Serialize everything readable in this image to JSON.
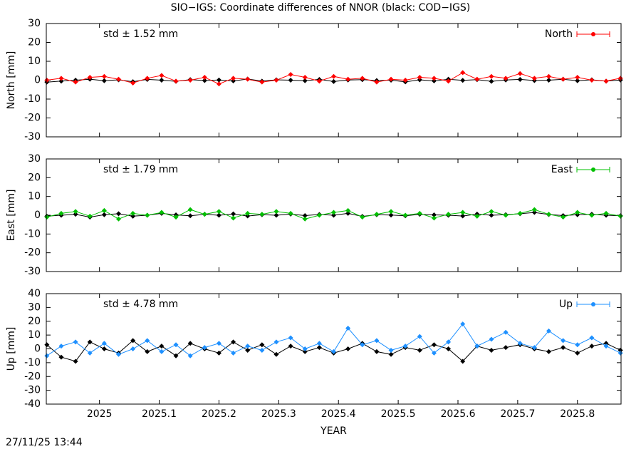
{
  "title": "SIO−IGS: Coordinate differences of NNOR (black: COD−IGS)",
  "timestamp": "27/11/25 13:44",
  "chart_data": [
    {
      "type": "line",
      "ylabel": "North [mm]",
      "annotation": "std ± 1.52 mm",
      "xlim": [
        2024.911,
        2025.873
      ],
      "xticks": [
        2025,
        2025.1,
        2025.2,
        2025.3,
        2025.4,
        2025.5,
        2025.6,
        2025.7,
        2025.8
      ],
      "ylim": [
        -30,
        30
      ],
      "yticks": [
        -30,
        -20,
        -10,
        0,
        10,
        20,
        30
      ],
      "legend": "upper right",
      "x": [
        2024.912,
        2024.936,
        2024.96,
        2024.984,
        2025.008,
        2025.032,
        2025.056,
        2025.08,
        2025.104,
        2025.128,
        2025.152,
        2025.176,
        2025.2,
        2025.224,
        2025.248,
        2025.272,
        2025.296,
        2025.32,
        2025.344,
        2025.368,
        2025.392,
        2025.416,
        2025.44,
        2025.464,
        2025.488,
        2025.512,
        2025.536,
        2025.56,
        2025.584,
        2025.608,
        2025.632,
        2025.656,
        2025.68,
        2025.704,
        2025.728,
        2025.752,
        2025.776,
        2025.8,
        2025.824,
        2025.848,
        2025.872
      ],
      "series": [
        {
          "color": "#000000",
          "values": [
            -1,
            -0.5,
            0,
            0.5,
            -0.3,
            0.2,
            -0.8,
            0.4,
            0,
            -0.6,
            0.3,
            -0.2,
            0.1,
            -0.4,
            0.6,
            -0.5,
            0.2,
            0,
            -0.3,
            0.4,
            -0.7,
            0.1,
            0.3,
            -0.2,
            0,
            -0.9,
            0.2,
            -0.4,
            0.5,
            -0.1,
            0.3,
            -0.6,
            0.1,
            0.4,
            -0.2,
            0,
            0.5,
            -0.3,
            0.2,
            -0.5,
            0.1
          ]
        },
        {
          "name": "North",
          "color": "#ff0000",
          "values": [
            0,
            1,
            -1,
            1.5,
            2,
            0.5,
            -1.5,
            1,
            2.5,
            -0.5,
            0,
            1.5,
            -2,
            1,
            0.5,
            -1,
            0,
            3,
            1.5,
            -0.5,
            2,
            0.5,
            1,
            -1,
            0.5,
            0,
            1.5,
            1,
            -0.5,
            4,
            0.5,
            2,
            1,
            3.5,
            1,
            2,
            0.5,
            1.5,
            0,
            -0.5,
            1
          ]
        }
      ]
    },
    {
      "type": "line",
      "ylabel": "East [mm]",
      "annotation": "std ± 1.79 mm",
      "xlim": [
        2024.911,
        2025.873
      ],
      "xticks": [
        2025,
        2025.1,
        2025.2,
        2025.3,
        2025.4,
        2025.5,
        2025.6,
        2025.7,
        2025.8
      ],
      "ylim": [
        -30,
        30
      ],
      "yticks": [
        -30,
        -20,
        -10,
        0,
        10,
        20,
        30
      ],
      "legend": "upper right",
      "x": [
        2024.912,
        2024.936,
        2024.96,
        2024.984,
        2025.008,
        2025.032,
        2025.056,
        2025.08,
        2025.104,
        2025.128,
        2025.152,
        2025.176,
        2025.2,
        2025.224,
        2025.248,
        2025.272,
        2025.296,
        2025.32,
        2025.344,
        2025.368,
        2025.392,
        2025.416,
        2025.44,
        2025.464,
        2025.488,
        2025.512,
        2025.536,
        2025.56,
        2025.584,
        2025.608,
        2025.632,
        2025.656,
        2025.68,
        2025.704,
        2025.728,
        2025.752,
        2025.776,
        2025.8,
        2025.824,
        2025.848,
        2025.872
      ],
      "series": [
        {
          "color": "#000000",
          "values": [
            -0.5,
            0,
            0.5,
            -1,
            0.3,
            0.8,
            -0.5,
            0,
            1,
            0.2,
            -0.3,
            0.5,
            0,
            0.7,
            -0.4,
            0.3,
            0,
            0.6,
            -0.2,
            0.4,
            0,
            1,
            -0.6,
            0.3,
            0.1,
            -0.3,
            0.5,
            0.2,
            0,
            -0.4,
            0.6,
            0,
            0.3,
            0.8,
            1.5,
            0.4,
            -0.2,
            0.3,
            0.5,
            0,
            -0.3
          ]
        },
        {
          "name": "East",
          "color": "#00c000",
          "values": [
            -1,
            1,
            2,
            -0.5,
            2.5,
            -2,
            1,
            0,
            1.5,
            -1,
            3,
            0.5,
            2,
            -1.5,
            1,
            0.5,
            2,
            1,
            -2,
            0,
            1.5,
            2.5,
            -1,
            0.5,
            2,
            0,
            1,
            -1.5,
            0.5,
            1.5,
            -0.5,
            2,
            0,
            1,
            3,
            0.5,
            -1,
            1.5,
            0,
            1,
            -0.5
          ]
        }
      ]
    },
    {
      "type": "line",
      "ylabel": "Up [mm]",
      "annotation": "std ± 4.78 mm",
      "xlabel": "YEAR",
      "xlim": [
        2024.911,
        2025.873
      ],
      "xticks": [
        2025,
        2025.1,
        2025.2,
        2025.3,
        2025.4,
        2025.5,
        2025.6,
        2025.7,
        2025.8
      ],
      "ylim": [
        -40,
        40
      ],
      "yticks": [
        -40,
        -30,
        -20,
        -10,
        0,
        10,
        20,
        30,
        40
      ],
      "legend": "upper right",
      "x": [
        2024.912,
        2024.936,
        2024.96,
        2024.984,
        2025.008,
        2025.032,
        2025.056,
        2025.08,
        2025.104,
        2025.128,
        2025.152,
        2025.176,
        2025.2,
        2025.224,
        2025.248,
        2025.272,
        2025.296,
        2025.32,
        2025.344,
        2025.368,
        2025.392,
        2025.416,
        2025.44,
        2025.464,
        2025.488,
        2025.512,
        2025.536,
        2025.56,
        2025.584,
        2025.608,
        2025.632,
        2025.656,
        2025.68,
        2025.704,
        2025.728,
        2025.752,
        2025.776,
        2025.8,
        2025.824,
        2025.848,
        2025.872
      ],
      "series": [
        {
          "color": "#000000",
          "values": [
            3,
            -6,
            -9,
            5,
            0,
            -3,
            6,
            -2,
            2,
            -5,
            4,
            0,
            -3,
            5,
            -1,
            3,
            -4,
            2,
            -2,
            1,
            -3,
            0,
            4,
            -2,
            -4,
            1,
            -1,
            3,
            0,
            -9,
            2,
            -1,
            1,
            3,
            0,
            -2,
            1,
            -3,
            2,
            4,
            -1
          ]
        },
        {
          "name": "Up",
          "color": "#1e90ff",
          "values": [
            -5,
            2,
            5,
            -3,
            4,
            -4,
            0,
            6,
            -2,
            3,
            -5,
            1,
            4,
            -3,
            2,
            -1,
            5,
            8,
            0,
            4,
            -2,
            15,
            3,
            6,
            -1,
            2,
            9,
            -3,
            5,
            18,
            2,
            7,
            12,
            4,
            1,
            13,
            6,
            3,
            8,
            2,
            -3
          ]
        }
      ]
    }
  ]
}
